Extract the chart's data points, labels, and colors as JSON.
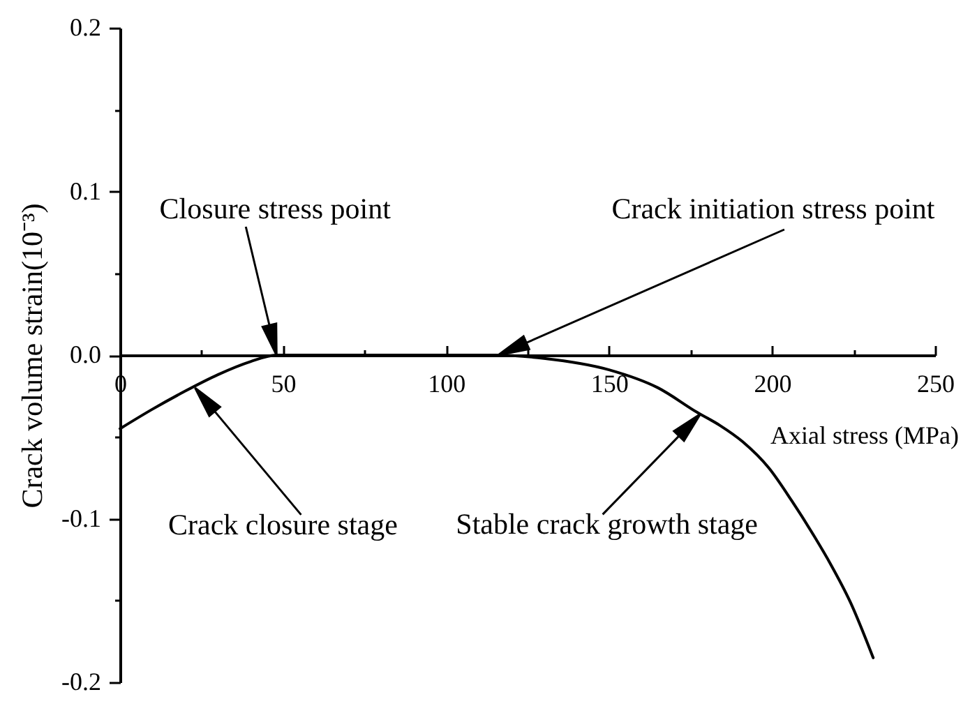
{
  "chart_data": {
    "type": "line",
    "xlabel": "Axial stress (MPa)",
    "ylabel": "Crack volume strain(10⁻³)",
    "x": [
      0,
      10,
      20,
      30,
      40,
      48,
      60,
      80,
      100,
      115,
      130,
      150,
      165,
      177,
      184,
      191,
      199,
      206,
      213,
      218,
      224,
      231
    ],
    "series": [
      {
        "color": "#000000",
        "values": [
          -0.045,
          -0.033,
          -0.022,
          -0.012,
          -0.004,
          0,
          0,
          0,
          0,
          0,
          -0.002,
          -0.009,
          -0.02,
          -0.035,
          -0.043,
          -0.053,
          -0.069,
          -0.089,
          -0.111,
          -0.128,
          -0.151,
          -0.185
        ]
      }
    ],
    "xlim": [
      0,
      250
    ],
    "ylim": [
      -0.2,
      0.2
    ],
    "xticks": [
      0,
      {
        "value": 25,
        "label": null
      },
      50,
      {
        "value": 75,
        "label": null
      },
      100,
      {
        "value": 125,
        "label": null
      },
      150,
      {
        "value": 175,
        "label": null
      },
      200,
      {
        "value": 225,
        "label": null
      },
      250
    ],
    "yticks": [
      -0.2,
      {
        "value": -0.15,
        "label": null
      },
      -0.1,
      {
        "value": -0.05,
        "label": null
      },
      {
        "value": 0,
        "label": "0.0"
      },
      {
        "value": 0.05,
        "label": null
      },
      0.1,
      {
        "value": 0.15,
        "label": null
      },
      0.2
    ],
    "annotations": [
      {
        "text": "Closure stress point",
        "x": 48,
        "y": 0
      },
      {
        "text": "Crack initiation stress point",
        "x": 116,
        "y": 0
      },
      {
        "text": "Crack closure stage",
        "x": 23,
        "y": -0.02
      },
      {
        "text": "Stable crack growth stage",
        "x": 178,
        "y": -0.036
      }
    ],
    "grid": false,
    "line_style": "solid"
  }
}
